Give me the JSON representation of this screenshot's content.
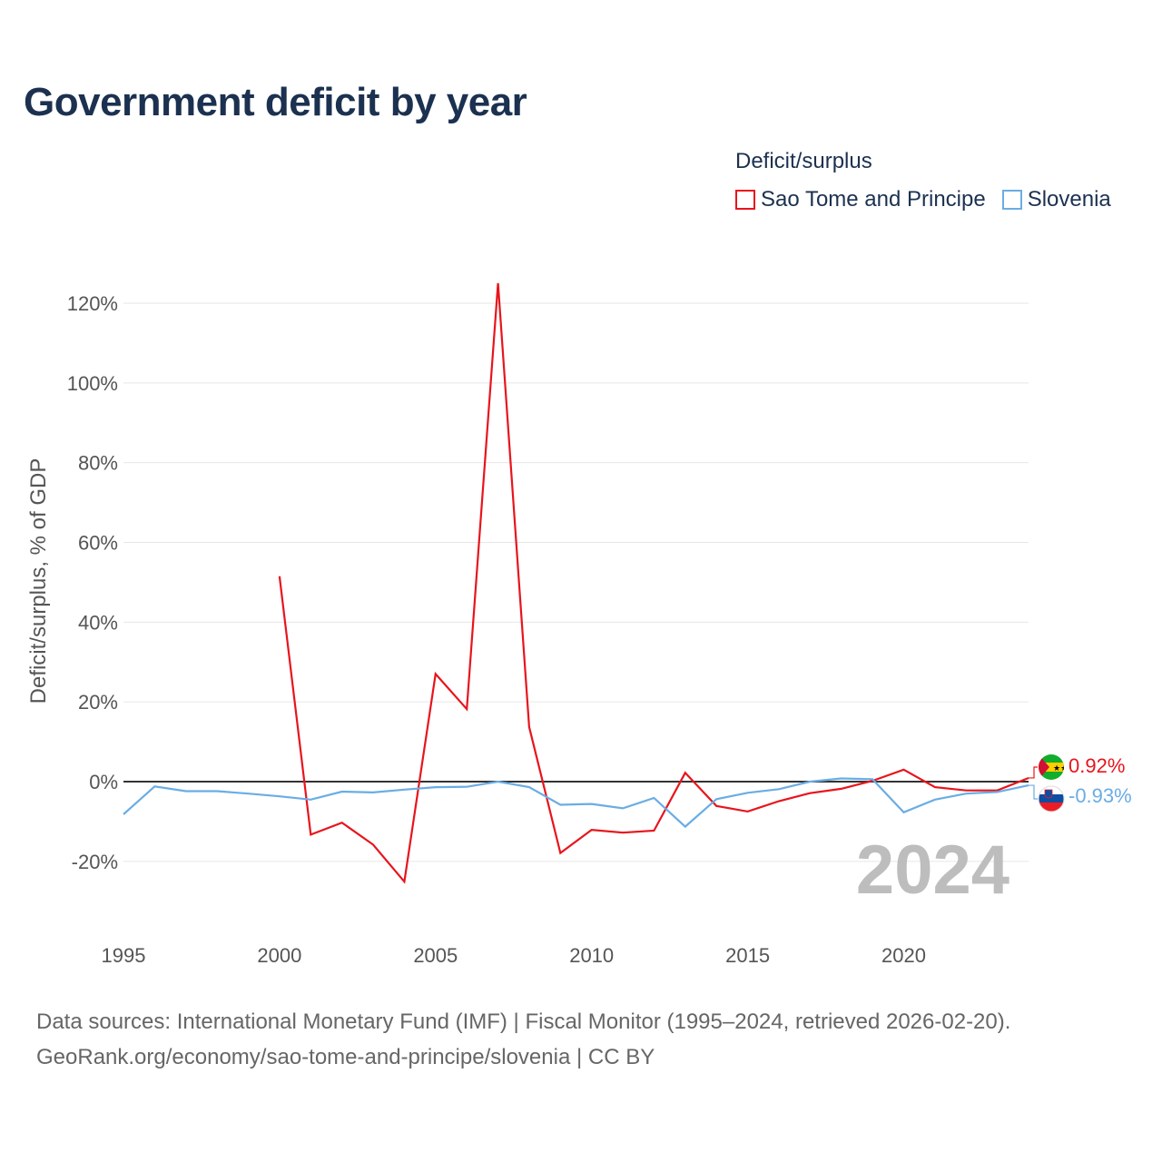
{
  "title": "Government deficit by year",
  "legend": {
    "title": "Deficit/surplus",
    "items": [
      {
        "label": "Sao Tome and Principe",
        "color": "#e8141c"
      },
      {
        "label": "Slovenia",
        "color": "#6aade4"
      }
    ]
  },
  "year_watermark": "2024",
  "footer": {
    "line1": "Data sources: International Monetary Fund (IMF) | Fiscal Monitor (1995–2024, retrieved 2026-02-20).",
    "line2": "GeoRank.org/economy/sao-tome-and-principe/slovenia | CC BY"
  },
  "chart_data": {
    "type": "line",
    "title": "Government deficit by year",
    "xlabel": "",
    "ylabel": "Deficit/surplus, % of GDP",
    "xlim": [
      1995,
      2024
    ],
    "ylim": [
      -25,
      127
    ],
    "x_ticks": [
      1995,
      2000,
      2005,
      2010,
      2015,
      2020
    ],
    "y_ticks": [
      -20,
      0,
      20,
      40,
      60,
      80,
      100,
      120
    ],
    "y_tick_labels": [
      "-20%",
      "0%",
      "20%",
      "40%",
      "60%",
      "80%",
      "100%",
      "120%"
    ],
    "x_tick_labels": [
      "1995",
      "2000",
      "2005",
      "2010",
      "2015",
      "2020"
    ],
    "series": [
      {
        "name": "Sao Tome and Principe",
        "color": "#e8141c",
        "end_label": "0.92%",
        "x": [
          2000,
          2001,
          2002,
          2003,
          2004,
          2005,
          2006,
          2007,
          2008,
          2009,
          2010,
          2011,
          2012,
          2013,
          2014,
          2015,
          2016,
          2017,
          2018,
          2019,
          2020,
          2021,
          2022,
          2023,
          2024
        ],
        "values": [
          51.5,
          -13.3,
          -10.3,
          -15.8,
          -25.1,
          27.0,
          18.2,
          125.0,
          13.7,
          -17.9,
          -12.1,
          -12.8,
          -12.3,
          2.2,
          -6.1,
          -7.5,
          -4.9,
          -2.9,
          -1.8,
          0.2,
          3.0,
          -1.4,
          -2.2,
          -2.2,
          0.92
        ]
      },
      {
        "name": "Slovenia",
        "color": "#6aade4",
        "end_label": "-0.93%",
        "x": [
          1995,
          1996,
          1997,
          1998,
          1999,
          2000,
          2001,
          2002,
          2003,
          2004,
          2005,
          2006,
          2007,
          2008,
          2009,
          2010,
          2011,
          2012,
          2013,
          2014,
          2015,
          2016,
          2017,
          2018,
          2019,
          2020,
          2021,
          2022,
          2023,
          2024
        ],
        "values": [
          -8.2,
          -1.2,
          -2.4,
          -2.4,
          -3.0,
          -3.7,
          -4.5,
          -2.5,
          -2.7,
          -2.0,
          -1.4,
          -1.3,
          0.0,
          -1.4,
          -5.8,
          -5.6,
          -6.7,
          -4.1,
          -11.3,
          -4.4,
          -2.8,
          -1.9,
          0.0,
          0.8,
          0.6,
          -7.7,
          -4.5,
          -3.0,
          -2.6,
          -0.93
        ]
      }
    ]
  }
}
